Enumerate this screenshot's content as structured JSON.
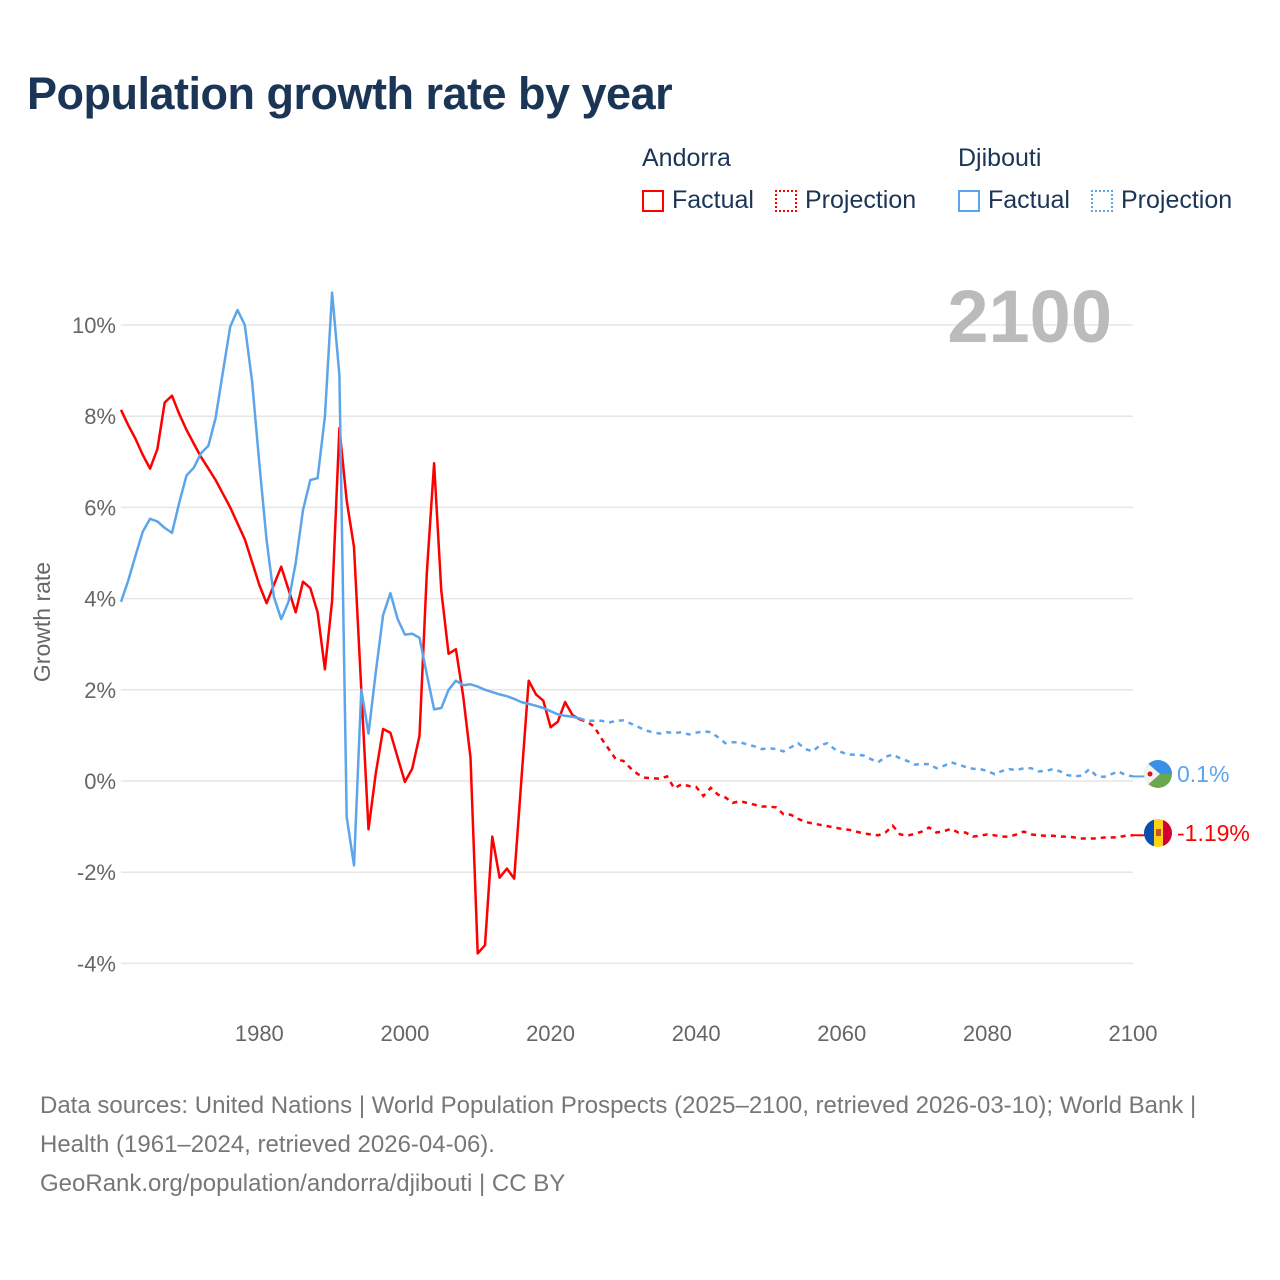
{
  "title": "Population growth rate by year",
  "legend": {
    "groups": [
      {
        "name": "Andorra",
        "factual": "Factual",
        "projection": "Projection",
        "color": "#ff0000"
      },
      {
        "name": "Djibouti",
        "factual": "Factual",
        "projection": "Projection",
        "color": "#5da5ea"
      }
    ]
  },
  "footer": {
    "sources": "Data sources: United Nations | World Population Prospects (2025–2100, retrieved 2026-03-10); World Bank | Health (1961–2024, retrieved 2026-04-06).",
    "credit": "GeoRank.org/population/andorra/djibouti | CC BY"
  },
  "chart_data": {
    "type": "line",
    "title": "Population growth rate by year",
    "xlabel": "",
    "ylabel": "Growth rate",
    "xlim": [
      1961,
      2100
    ],
    "ylim": [
      -4.5,
      10.8
    ],
    "grid": true,
    "current_year_label": "2100",
    "x_ticks": [
      1980,
      2000,
      2020,
      2040,
      2060,
      2080,
      2100
    ],
    "x_tick_labels": [
      "1980",
      "2000",
      "2020",
      "2040",
      "2060",
      "2080",
      "2100"
    ],
    "y_ticks": [
      -4,
      -2,
      0,
      2,
      4,
      6,
      8,
      10
    ],
    "y_tick_labels": [
      "-4%",
      "-2%",
      "0%",
      "2%",
      "4%",
      "6%",
      "8%",
      "10%"
    ],
    "factual_years": [
      1961,
      2024
    ],
    "projection_years": [
      2024,
      2100
    ],
    "series": [
      {
        "name": "Andorra",
        "color": "#ff0000",
        "end_label": "-1.19%",
        "factual": [
          8.14,
          7.8,
          7.5,
          7.15,
          6.85,
          7.28,
          8.3,
          8.45,
          8.05,
          7.7,
          7.4,
          7.1,
          6.85,
          6.6,
          6.3,
          6.0,
          5.65,
          5.3,
          4.8,
          4.3,
          3.9,
          4.3,
          4.7,
          4.2,
          3.7,
          4.37,
          4.23,
          3.7,
          2.45,
          3.95,
          7.74,
          6.15,
          5.13,
          2.0,
          -1.06,
          0.17,
          1.14,
          1.06,
          0.51,
          -0.02,
          0.27,
          0.99,
          4.56,
          6.97,
          4.17,
          2.79,
          2.89,
          1.86,
          0.51,
          -3.78,
          -3.6,
          -1.22,
          -2.12,
          -1.92,
          -2.14,
          0.03,
          2.2,
          1.9,
          1.76,
          1.18,
          1.3,
          1.73,
          1.45,
          1.35
        ],
        "projection": [
          1.35,
          1.3,
          1.19,
          0.93,
          0.7,
          0.47,
          0.44,
          0.28,
          0.15,
          0.07,
          0.06,
          0.05,
          0.1,
          -0.16,
          -0.07,
          -0.11,
          -0.13,
          -0.33,
          -0.15,
          -0.3,
          -0.36,
          -0.48,
          -0.44,
          -0.48,
          -0.52,
          -0.56,
          -0.56,
          -0.58,
          -0.73,
          -0.74,
          -0.83,
          -0.9,
          -0.93,
          -0.96,
          -0.99,
          -1.02,
          -1.05,
          -1.07,
          -1.11,
          -1.15,
          -1.17,
          -1.19,
          -1.13,
          -0.98,
          -1.17,
          -1.2,
          -1.16,
          -1.11,
          -1.02,
          -1.13,
          -1.1,
          -1.05,
          -1.13,
          -1.13,
          -1.22,
          -1.2,
          -1.17,
          -1.19,
          -1.22,
          -1.22,
          -1.17,
          -1.11,
          -1.17,
          -1.19,
          -1.2,
          -1.2,
          -1.22,
          -1.22,
          -1.24,
          -1.26,
          -1.26,
          -1.26,
          -1.24,
          -1.24,
          -1.23,
          -1.2,
          -1.19
        ]
      },
      {
        "name": "Djibouti",
        "color": "#5da5ea",
        "end_label": "0.1%",
        "factual": [
          3.93,
          4.4,
          4.95,
          5.47,
          5.75,
          5.69,
          5.55,
          5.44,
          6.1,
          6.7,
          6.87,
          7.19,
          7.35,
          7.96,
          8.97,
          9.96,
          10.33,
          10.0,
          8.76,
          6.97,
          5.28,
          4.04,
          3.55,
          3.93,
          4.78,
          5.94,
          6.6,
          6.64,
          7.99,
          10.71,
          8.9,
          -0.79,
          -1.85,
          2.0,
          1.04,
          2.39,
          3.64,
          4.12,
          3.55,
          3.21,
          3.23,
          3.14,
          2.34,
          1.57,
          1.6,
          2.0,
          2.2,
          2.1,
          2.12,
          2.07,
          2.0,
          1.95,
          1.9,
          1.86,
          1.8,
          1.73,
          1.69,
          1.65,
          1.6,
          1.53,
          1.46,
          1.43,
          1.41,
          1.37
        ],
        "projection": [
          1.37,
          1.32,
          1.32,
          1.32,
          1.28,
          1.32,
          1.33,
          1.26,
          1.19,
          1.11,
          1.07,
          1.04,
          1.07,
          1.05,
          1.07,
          1.02,
          1.06,
          1.09,
          1.07,
          0.96,
          0.83,
          0.85,
          0.85,
          0.8,
          0.76,
          0.7,
          0.72,
          0.7,
          0.65,
          0.74,
          0.83,
          0.7,
          0.65,
          0.78,
          0.83,
          0.7,
          0.63,
          0.58,
          0.58,
          0.56,
          0.48,
          0.41,
          0.53,
          0.58,
          0.5,
          0.44,
          0.36,
          0.37,
          0.37,
          0.28,
          0.33,
          0.41,
          0.36,
          0.31,
          0.27,
          0.26,
          0.22,
          0.15,
          0.22,
          0.26,
          0.24,
          0.28,
          0.28,
          0.21,
          0.22,
          0.26,
          0.21,
          0.13,
          0.1,
          0.12,
          0.26,
          0.11,
          0.09,
          0.15,
          0.21,
          0.13,
          0.1
        ]
      }
    ]
  }
}
